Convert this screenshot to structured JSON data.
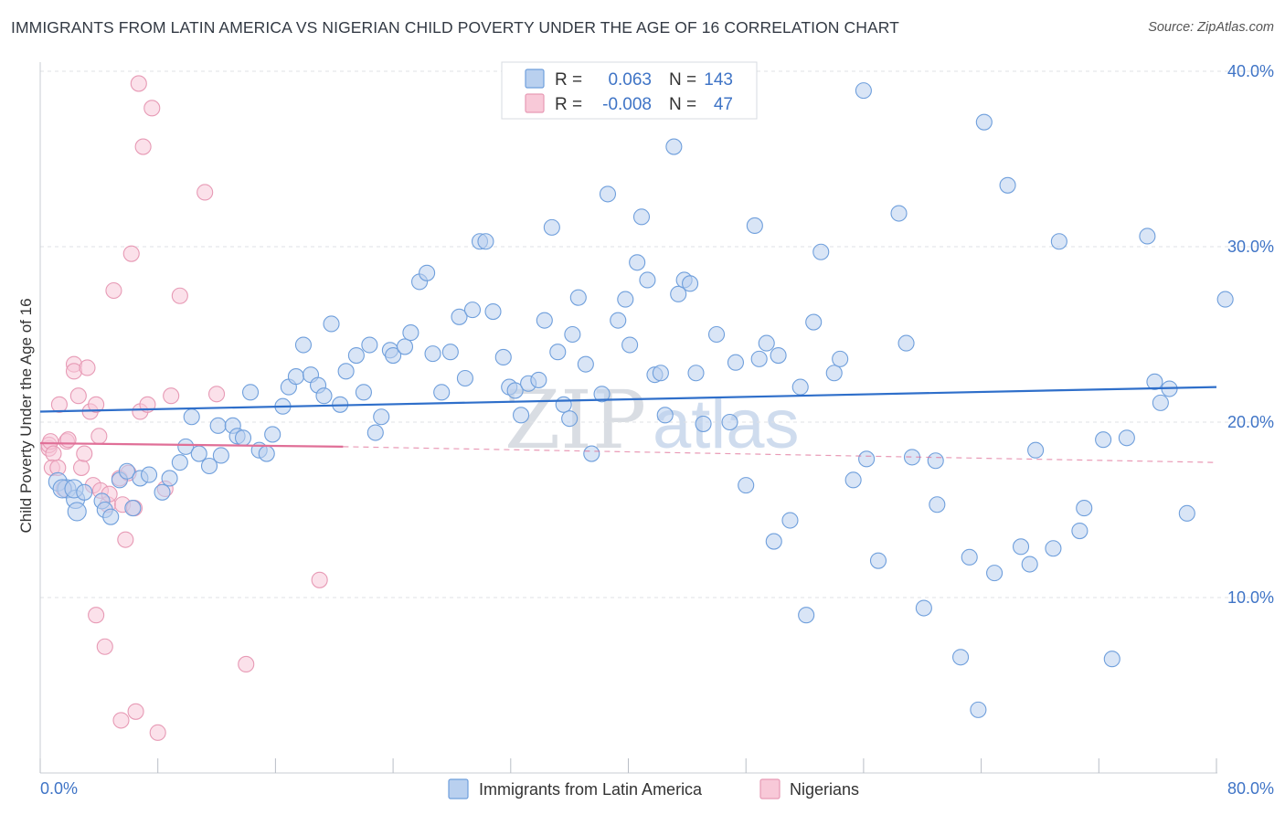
{
  "chart_data": {
    "type": "scatter",
    "title": "IMMIGRANTS FROM LATIN AMERICA VS NIGERIAN CHILD POVERTY UNDER THE AGE OF 16 CORRELATION CHART",
    "source": "Source: ZipAtlas.com",
    "xlabel": "",
    "ylabel": "Child Poverty Under the Age of 16",
    "xlim": [
      0,
      80
    ],
    "ylim": [
      0,
      40
    ],
    "x_tick_labels": [
      "0.0%",
      "80.0%"
    ],
    "y_ticks": [
      10,
      20,
      30,
      40
    ],
    "y_tick_labels": [
      "10.0%",
      "20.0%",
      "30.0%",
      "40.0%"
    ],
    "watermark": [
      "ZIP",
      "atlas"
    ],
    "legend": {
      "rows": [
        {
          "r_label": "R =",
          "r_value": "0.063",
          "n_label": "N =",
          "n_value": "143"
        },
        {
          "r_label": "R =",
          "r_value": "-0.008",
          "n_label": "N =",
          "n_value": "47"
        }
      ]
    },
    "series": [
      {
        "name": "Immigrants from Latin America",
        "color": "#6f9fdc",
        "fill": "#b9d0ef",
        "trend_color": "#2f6fca",
        "trend": {
          "x0": 0,
          "y0": 20.6,
          "x1": 80,
          "y1": 22.0
        },
        "points": [
          [
            1.2,
            16.6
          ],
          [
            1.8,
            16.2
          ],
          [
            1.5,
            16.2
          ],
          [
            2.4,
            15.6
          ],
          [
            2.3,
            16.2
          ],
          [
            2.5,
            14.9
          ],
          [
            3.0,
            16.0
          ],
          [
            4.2,
            15.5
          ],
          [
            4.4,
            15.0
          ],
          [
            4.8,
            14.6
          ],
          [
            5.4,
            16.7
          ],
          [
            5.9,
            17.2
          ],
          [
            6.3,
            15.1
          ],
          [
            6.8,
            16.8
          ],
          [
            7.4,
            17.0
          ],
          [
            8.3,
            16.0
          ],
          [
            8.8,
            16.8
          ],
          [
            9.5,
            17.7
          ],
          [
            9.9,
            18.6
          ],
          [
            10.3,
            20.3
          ],
          [
            10.8,
            18.2
          ],
          [
            11.5,
            17.5
          ],
          [
            12.1,
            19.8
          ],
          [
            12.3,
            18.1
          ],
          [
            13.1,
            19.8
          ],
          [
            13.4,
            19.2
          ],
          [
            13.8,
            19.1
          ],
          [
            14.3,
            21.7
          ],
          [
            14.9,
            18.4
          ],
          [
            15.4,
            18.2
          ],
          [
            15.8,
            19.3
          ],
          [
            16.5,
            20.9
          ],
          [
            16.9,
            22.0
          ],
          [
            17.4,
            22.6
          ],
          [
            17.9,
            24.4
          ],
          [
            18.4,
            22.7
          ],
          [
            18.9,
            22.1
          ],
          [
            19.3,
            21.5
          ],
          [
            19.8,
            25.6
          ],
          [
            20.4,
            21.0
          ],
          [
            20.8,
            22.9
          ],
          [
            21.5,
            23.8
          ],
          [
            22.0,
            21.7
          ],
          [
            22.4,
            24.4
          ],
          [
            22.8,
            19.4
          ],
          [
            23.2,
            20.3
          ],
          [
            23.8,
            24.1
          ],
          [
            24.0,
            23.8
          ],
          [
            24.8,
            24.3
          ],
          [
            25.2,
            25.1
          ],
          [
            25.8,
            28.0
          ],
          [
            26.3,
            28.5
          ],
          [
            26.7,
            23.9
          ],
          [
            27.3,
            21.7
          ],
          [
            27.9,
            24.0
          ],
          [
            28.5,
            26.0
          ],
          [
            28.9,
            22.5
          ],
          [
            29.4,
            26.4
          ],
          [
            29.9,
            30.3
          ],
          [
            30.3,
            30.3
          ],
          [
            30.8,
            26.3
          ],
          [
            31.5,
            23.7
          ],
          [
            31.9,
            22.0
          ],
          [
            32.3,
            21.8
          ],
          [
            32.7,
            20.4
          ],
          [
            33.2,
            22.2
          ],
          [
            33.9,
            22.4
          ],
          [
            34.3,
            25.8
          ],
          [
            34.8,
            31.1
          ],
          [
            35.2,
            24.0
          ],
          [
            35.6,
            21.0
          ],
          [
            36.0,
            20.2
          ],
          [
            36.2,
            25.0
          ],
          [
            36.6,
            27.1
          ],
          [
            37.1,
            23.3
          ],
          [
            37.5,
            18.2
          ],
          [
            38.2,
            21.6
          ],
          [
            38.6,
            33.0
          ],
          [
            39.3,
            25.8
          ],
          [
            39.8,
            27.0
          ],
          [
            40.1,
            24.4
          ],
          [
            40.6,
            29.1
          ],
          [
            40.9,
            31.7
          ],
          [
            41.3,
            28.1
          ],
          [
            41.8,
            22.7
          ],
          [
            42.2,
            22.8
          ],
          [
            42.5,
            20.4
          ],
          [
            43.1,
            35.7
          ],
          [
            43.4,
            27.3
          ],
          [
            43.8,
            28.1
          ],
          [
            44.2,
            27.9
          ],
          [
            44.6,
            22.8
          ],
          [
            45.1,
            19.9
          ],
          [
            46.0,
            25.0
          ],
          [
            46.9,
            20.0
          ],
          [
            47.3,
            23.4
          ],
          [
            48.0,
            16.4
          ],
          [
            48.6,
            31.2
          ],
          [
            48.9,
            23.6
          ],
          [
            49.4,
            24.5
          ],
          [
            49.9,
            13.2
          ],
          [
            50.2,
            23.8
          ],
          [
            51.0,
            14.4
          ],
          [
            51.7,
            22.0
          ],
          [
            52.1,
            9.0
          ],
          [
            52.6,
            25.7
          ],
          [
            53.1,
            29.7
          ],
          [
            54.0,
            22.8
          ],
          [
            54.4,
            23.6
          ],
          [
            55.3,
            16.7
          ],
          [
            56.0,
            38.9
          ],
          [
            56.2,
            17.9
          ],
          [
            57.0,
            12.1
          ],
          [
            58.4,
            31.9
          ],
          [
            58.9,
            24.5
          ],
          [
            59.3,
            18.0
          ],
          [
            60.1,
            9.4
          ],
          [
            60.9,
            17.8
          ],
          [
            61.0,
            15.3
          ],
          [
            62.6,
            6.6
          ],
          [
            63.2,
            12.3
          ],
          [
            63.8,
            3.6
          ],
          [
            64.2,
            37.1
          ],
          [
            64.9,
            11.4
          ],
          [
            65.8,
            33.5
          ],
          [
            66.7,
            12.9
          ],
          [
            67.3,
            11.9
          ],
          [
            67.7,
            18.4
          ],
          [
            68.9,
            12.8
          ],
          [
            69.3,
            30.3
          ],
          [
            70.7,
            13.8
          ],
          [
            71.0,
            15.1
          ],
          [
            72.3,
            19.0
          ],
          [
            72.9,
            6.5
          ],
          [
            73.9,
            19.1
          ],
          [
            75.3,
            30.6
          ],
          [
            75.8,
            22.3
          ],
          [
            76.2,
            21.1
          ],
          [
            76.8,
            21.9
          ],
          [
            78.0,
            14.8
          ],
          [
            80.6,
            27.0
          ]
        ]
      },
      {
        "name": "Nigerians",
        "color": "#e79ab5",
        "fill": "#f8c9d8",
        "trend_color": "#e06f97",
        "trend": {
          "x0": 0,
          "y0": 18.8,
          "x1": 20.6,
          "y1": 18.6
        },
        "trend_dashed": {
          "x0": 20.6,
          "y0": 18.6,
          "x1": 80,
          "y1": 17.7
        },
        "points": [
          [
            0.6,
            18.5
          ],
          [
            0.6,
            18.7
          ],
          [
            0.7,
            18.9
          ],
          [
            0.9,
            18.2
          ],
          [
            0.8,
            17.4
          ],
          [
            1.2,
            17.4
          ],
          [
            1.3,
            21.0
          ],
          [
            1.6,
            16.2
          ],
          [
            1.8,
            18.9
          ],
          [
            1.9,
            19.0
          ],
          [
            2.3,
            23.3
          ],
          [
            2.3,
            22.9
          ],
          [
            2.6,
            21.5
          ],
          [
            2.8,
            17.4
          ],
          [
            3.0,
            18.2
          ],
          [
            3.2,
            23.1
          ],
          [
            3.4,
            20.6
          ],
          [
            3.6,
            16.4
          ],
          [
            3.8,
            21.0
          ],
          [
            4.0,
            19.2
          ],
          [
            4.1,
            16.1
          ],
          [
            3.8,
            9.0
          ],
          [
            4.4,
            7.2
          ],
          [
            4.6,
            15.3
          ],
          [
            4.7,
            15.9
          ],
          [
            5.0,
            27.5
          ],
          [
            5.4,
            16.8
          ],
          [
            5.5,
            3.0
          ],
          [
            5.6,
            15.3
          ],
          [
            5.8,
            13.3
          ],
          [
            6.0,
            17.1
          ],
          [
            6.2,
            29.6
          ],
          [
            6.4,
            15.1
          ],
          [
            6.5,
            3.5
          ],
          [
            6.7,
            39.3
          ],
          [
            6.8,
            20.6
          ],
          [
            7.0,
            35.7
          ],
          [
            7.3,
            21.0
          ],
          [
            7.6,
            37.9
          ],
          [
            8.0,
            2.3
          ],
          [
            8.5,
            16.2
          ],
          [
            8.9,
            21.5
          ],
          [
            9.5,
            27.2
          ],
          [
            11.2,
            33.1
          ],
          [
            12.0,
            21.6
          ],
          [
            14.0,
            6.2
          ],
          [
            19.0,
            11.0
          ]
        ]
      }
    ]
  }
}
